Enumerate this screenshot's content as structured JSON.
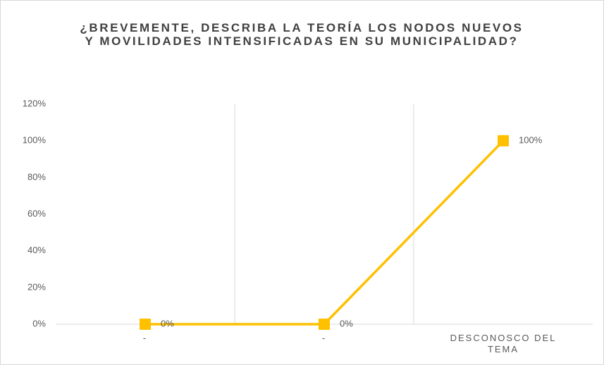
{
  "chart_data": {
    "type": "line",
    "title": "¿BREVEMENTE, DESCRIBA LA TEORÍA LOS NODOS NUEVOS Y MOVILIDADES INTENSIFICADAS EN SU MUNICIPALIDAD?",
    "categories": [
      "-",
      "-",
      "DESCONOSCO DEL TEMA"
    ],
    "values": [
      0,
      0,
      100
    ],
    "value_labels": [
      "0%",
      "0%",
      "100%"
    ],
    "color": "#ffc000",
    "ylim": [
      0,
      120
    ],
    "yticks": [
      {
        "value": 0,
        "label": "0%"
      },
      {
        "value": 20,
        "label": "20%"
      },
      {
        "value": 40,
        "label": "40%"
      },
      {
        "value": 60,
        "label": "60%"
      },
      {
        "value": 80,
        "label": "80%"
      },
      {
        "value": 100,
        "label": "100%"
      },
      {
        "value": 120,
        "label": "120%"
      }
    ]
  }
}
